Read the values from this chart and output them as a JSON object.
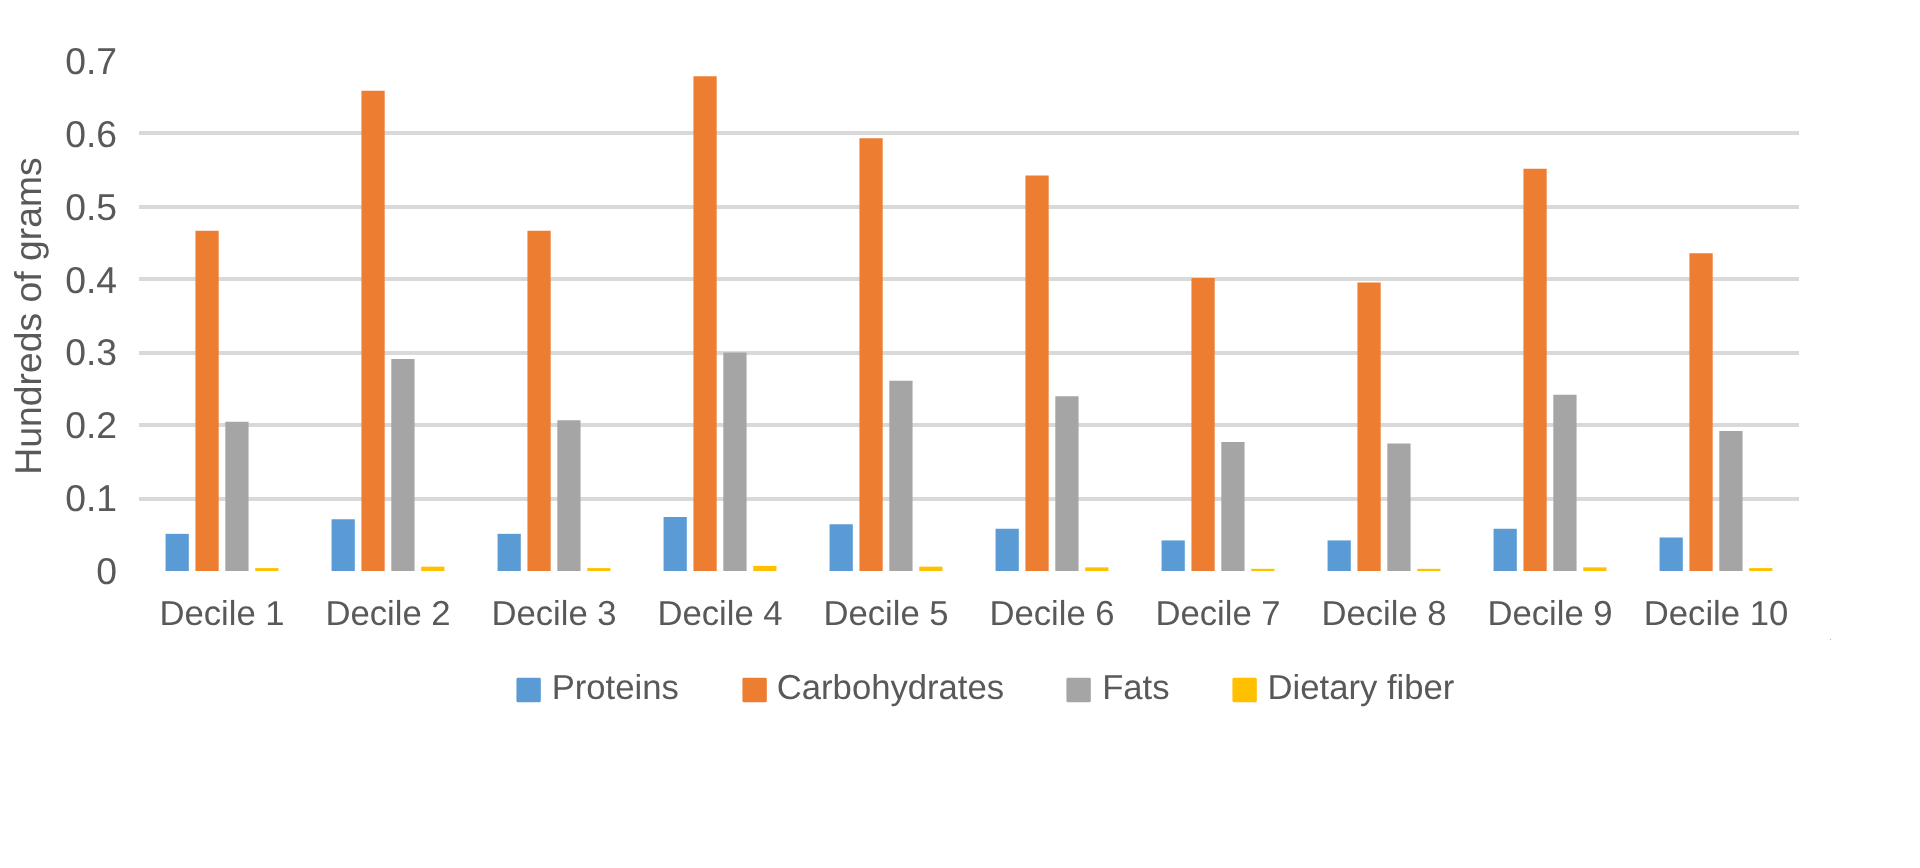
{
  "chart_data": {
    "type": "bar",
    "ylabel": "Hundreds of grams",
    "categories": [
      "Decile 1",
      "Decile 2",
      "Decile 3",
      "Decile 4",
      "Decile 5",
      "Decile 6",
      "Decile 7",
      "Decile 8",
      "Decile 9",
      "Decile 10"
    ],
    "series": [
      {
        "name": "Proteins",
        "color": "#5b9bd5",
        "values": [
          0.051,
          0.071,
          0.051,
          0.074,
          0.064,
          0.058,
          0.042,
          0.042,
          0.058,
          0.046
        ]
      },
      {
        "name": "Carbohydrates",
        "color": "#ed7d31",
        "values": [
          0.467,
          0.659,
          0.467,
          0.679,
          0.594,
          0.543,
          0.402,
          0.396,
          0.552,
          0.436
        ]
      },
      {
        "name": "Fats",
        "color": "#a5a5a5",
        "values": [
          0.205,
          0.291,
          0.207,
          0.3,
          0.261,
          0.24,
          0.177,
          0.175,
          0.242,
          0.192
        ]
      },
      {
        "name": "Dietary fiber",
        "color": "#ffc000",
        "values": [
          0.004,
          0.006,
          0.004,
          0.007,
          0.006,
          0.005,
          0.003,
          0.003,
          0.005,
          0.004
        ]
      }
    ],
    "ylim": [
      0,
      0.7
    ],
    "yticks": [
      0,
      0.1,
      0.2,
      0.3,
      0.4,
      0.5,
      0.6,
      0.7
    ],
    "grid": "y",
    "legend": "bottom"
  }
}
